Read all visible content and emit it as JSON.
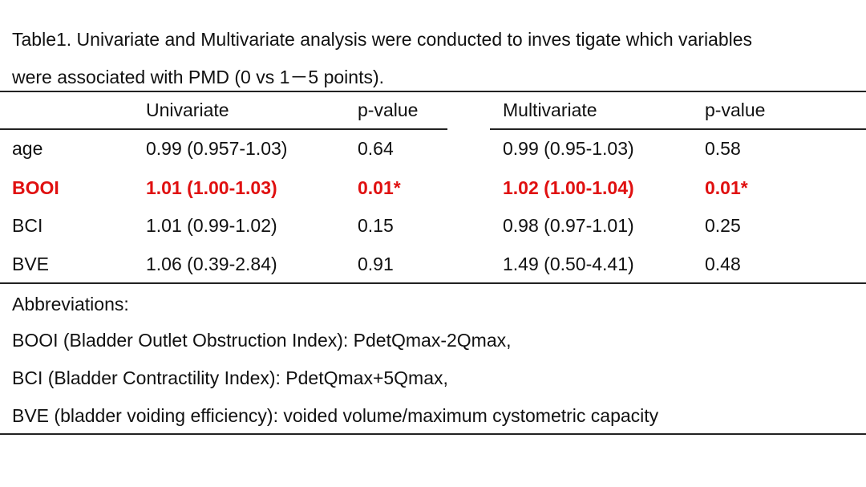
{
  "caption": {
    "line1": "Table1. Univariate and Multivariate  analysis were conducted to inves tigate which variables",
    "line2": "were associated with PMD (0 vs 1－5 points)."
  },
  "table": {
    "headers": [
      "",
      "Univariate",
      "p-value",
      "Multivariate",
      "p-value"
    ],
    "rows": [
      {
        "cells": [
          "age",
          "0.99 (0.957-1.03)",
          "0.64",
          "0.99 (0.95-1.03)",
          "0.58"
        ],
        "highlight": false
      },
      {
        "cells": [
          "BOOI",
          "1.01 (1.00-1.03)",
          "0.01*",
          "1.02 (1.00-1.04)",
          "0.01*"
        ],
        "highlight": true
      },
      {
        "cells": [
          "BCI",
          "1.01 (0.99-1.02)",
          "0.15",
          "0.98 (0.97-1.01)",
          "0.25"
        ],
        "highlight": false
      },
      {
        "cells": [
          "BVE",
          "1.06 (0.39-2.84)",
          "0.91",
          "1.49 (0.50-4.41)",
          "0.48"
        ],
        "highlight": false
      }
    ],
    "highlight_color": "#e01010"
  },
  "abbreviations": {
    "title": "Abbreviations:",
    "items": [
      "BOOI (Bladder Outlet Obstruction Index): PdetQmax-2Qmax,",
      "BCI (Bladder Contractility Index): PdetQmax+5Qmax,",
      "BVE (bladder voiding efficiency): voided volume/maximum cystometric capacity"
    ]
  }
}
